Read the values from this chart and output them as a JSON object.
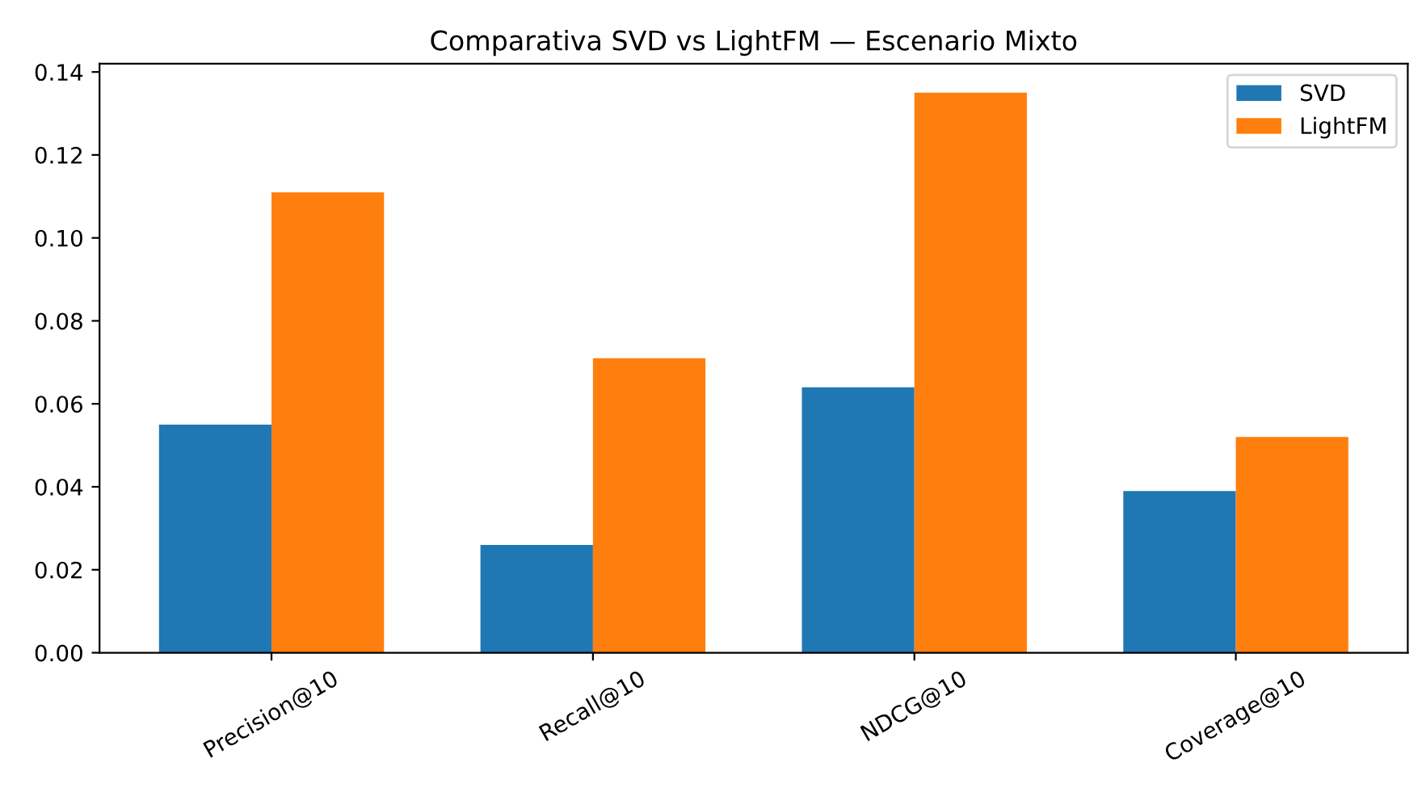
{
  "chart_data": {
    "type": "bar",
    "title": "Comparativa SVD vs LightFM — Escenario Mixto",
    "categories": [
      "Precision@10",
      "Recall@10",
      "NDCG@10",
      "Coverage@10"
    ],
    "series": [
      {
        "name": "SVD",
        "color": "#1f77b4",
        "values": [
          0.055,
          0.026,
          0.064,
          0.039
        ]
      },
      {
        "name": "LightFM",
        "color": "#ff7f0e",
        "values": [
          0.111,
          0.071,
          0.135,
          0.052
        ]
      }
    ],
    "ylim": [
      0,
      0.142
    ],
    "yticks": [
      {
        "value": 0,
        "label": "0.00"
      },
      {
        "value": 0.02,
        "label": "0.02"
      },
      {
        "value": 0.04,
        "label": "0.04"
      },
      {
        "value": 0.06,
        "label": "0.06"
      },
      {
        "value": 0.08,
        "label": "0.08"
      },
      {
        "value": 0.1,
        "label": "0.10"
      },
      {
        "value": 0.12,
        "label": "0.12"
      },
      {
        "value": 0.14,
        "label": "0.14"
      }
    ],
    "legend": "top right"
  }
}
